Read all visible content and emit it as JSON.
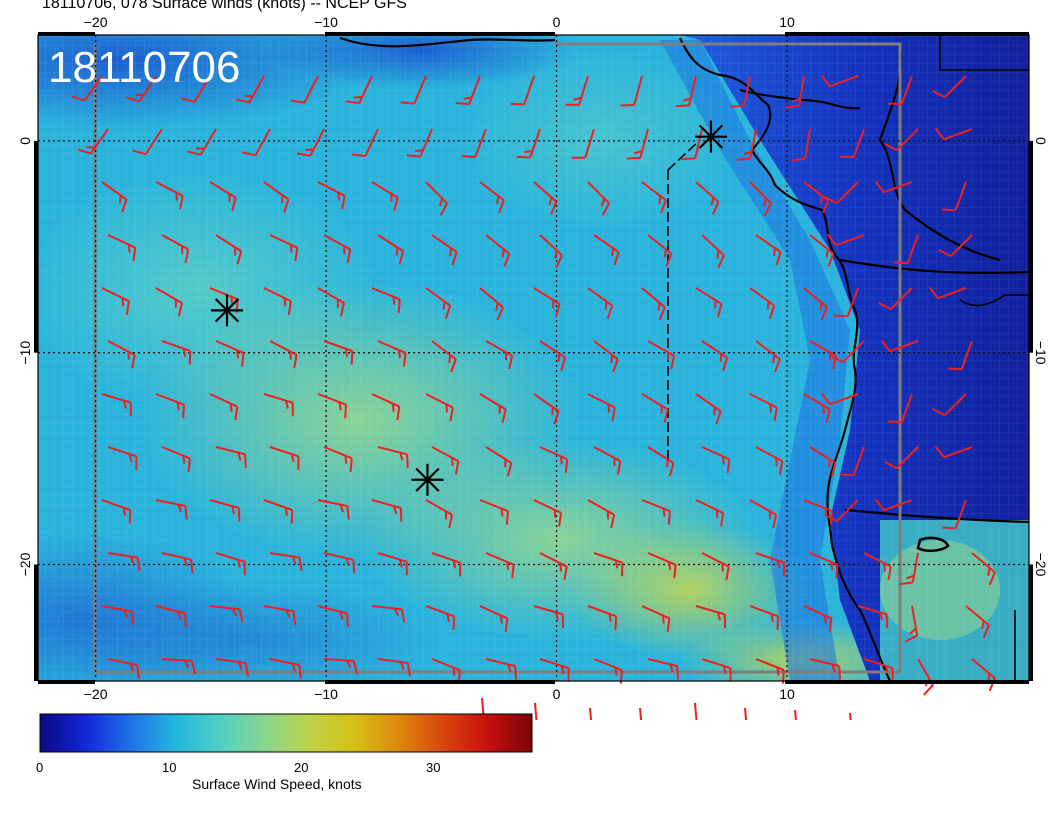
{
  "title": "18110706, 078 Surface winds (knots) -- NCEP GFS",
  "stamp": "18110706",
  "lon_ticks": [
    "−20",
    "−10",
    "0",
    "10"
  ],
  "lat_ticks": [
    "0",
    "−10",
    "−20"
  ],
  "colorbar": {
    "label": "Surface Wind Speed, knots",
    "ticks": [
      "0",
      "10",
      "20",
      "30"
    ],
    "min": 0,
    "max": 37,
    "stops": [
      "#0c0a82",
      "#1226d8",
      "#1f6fe8",
      "#22b6e0",
      "#4fd0c4",
      "#86d690",
      "#bcd24a",
      "#d4c214",
      "#dd8a0e",
      "#d8460e",
      "#c8100e",
      "#7a0404"
    ]
  },
  "map": {
    "lon_range": [
      -22.5,
      20.5
    ],
    "lat_range": [
      -25.5,
      5
    ],
    "grid_lons": [
      -20,
      -10,
      0,
      10
    ],
    "grid_lats": [
      0,
      -10,
      -20
    ],
    "barb_color": "#ee1f1f",
    "ocean_colors": [
      "#23aedc",
      "#4ccac8",
      "#7fd4a0",
      "#1d74dc",
      "#1533b8"
    ],
    "markers": [
      {
        "lon": 6.7,
        "lat": 0.2
      },
      {
        "lon": -14.3,
        "lat": -8.0
      },
      {
        "lon": -5.6,
        "lat": -16.0
      }
    ]
  }
}
